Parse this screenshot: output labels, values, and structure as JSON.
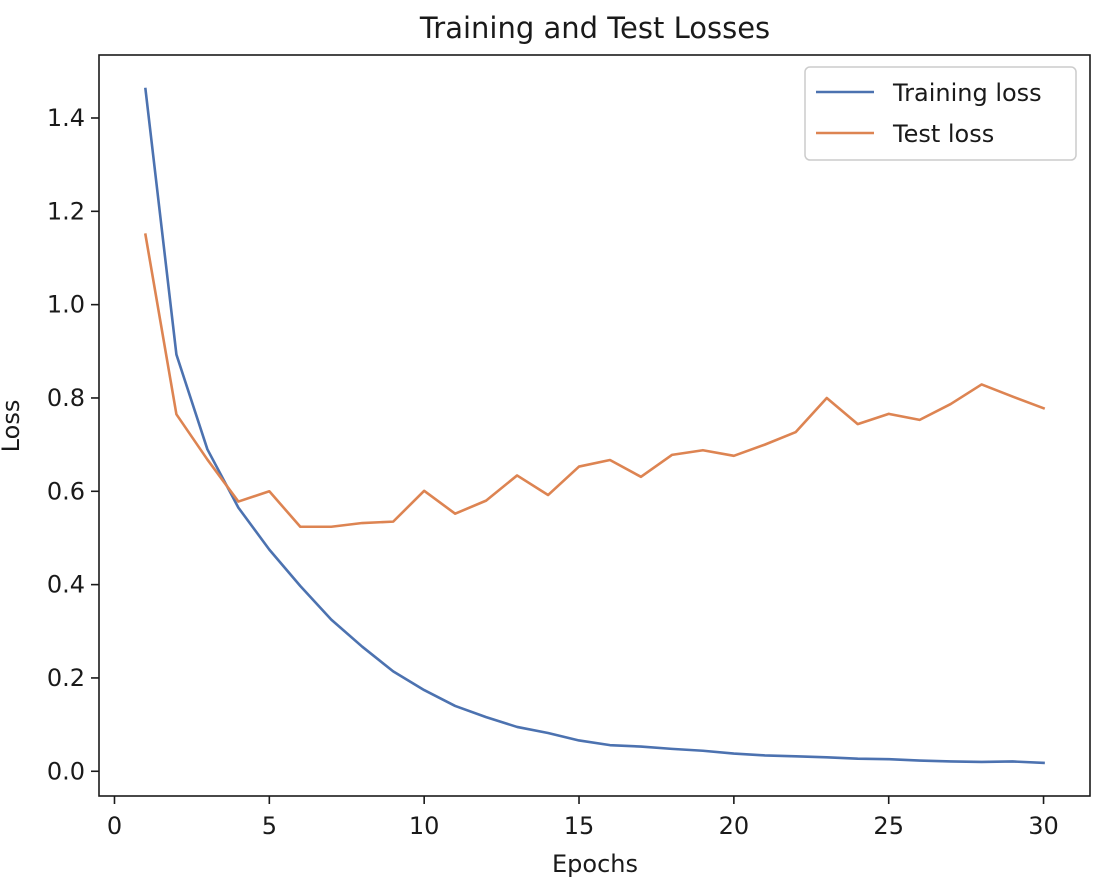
{
  "chart_data": {
    "type": "line",
    "title": "Training and Test Losses",
    "xlabel": "Epochs",
    "ylabel": "Loss",
    "xlim": [
      -0.5,
      31.5
    ],
    "ylim": [
      -0.053,
      1.535
    ],
    "xticks": [
      0,
      5,
      10,
      15,
      20,
      25,
      30
    ],
    "xtick_labels": [
      "0",
      "5",
      "10",
      "15",
      "20",
      "25",
      "30"
    ],
    "yticks": [
      0.0,
      0.2,
      0.4,
      0.6,
      0.8,
      1.0,
      1.2,
      1.4
    ],
    "ytick_labels": [
      "0.0",
      "0.2",
      "0.4",
      "0.6",
      "0.8",
      "1.0",
      "1.2",
      "1.4"
    ],
    "grid": false,
    "legend_position": "top-right",
    "x": [
      1,
      2,
      3,
      4,
      5,
      6,
      7,
      8,
      9,
      10,
      11,
      12,
      13,
      14,
      15,
      16,
      17,
      18,
      19,
      20,
      21,
      22,
      23,
      24,
      25,
      26,
      27,
      28,
      29,
      30
    ],
    "series": [
      {
        "name": "Training loss",
        "color": "#4C72B0",
        "values": [
          1.462,
          0.893,
          0.69,
          0.565,
          0.475,
          0.397,
          0.325,
          0.267,
          0.214,
          0.174,
          0.14,
          0.116,
          0.095,
          0.082,
          0.066,
          0.056,
          0.053,
          0.048,
          0.044,
          0.038,
          0.034,
          0.032,
          0.03,
          0.027,
          0.026,
          0.023,
          0.021,
          0.02,
          0.021,
          0.018
        ]
      },
      {
        "name": "Test loss",
        "color": "#DD8452",
        "values": [
          1.15,
          0.765,
          0.668,
          0.578,
          0.6,
          0.524,
          0.524,
          0.532,
          0.535,
          0.601,
          0.552,
          0.58,
          0.634,
          0.592,
          0.653,
          0.667,
          0.631,
          0.678,
          0.688,
          0.676,
          0.7,
          0.727,
          0.8,
          0.744,
          0.766,
          0.753,
          0.787,
          0.829,
          0.803,
          0.778
        ]
      }
    ]
  }
}
